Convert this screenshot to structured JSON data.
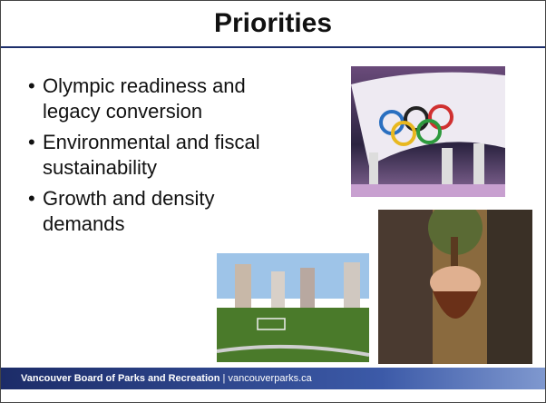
{
  "title": "Priorities",
  "bullets": [
    "Olympic readiness and legacy conversion",
    "Environmental and fiscal sustainability",
    "Growth and density demands"
  ],
  "footer": {
    "organization": "Vancouver Board of Parks and Recreation",
    "separator": "|",
    "website": "vancouverparks.ca"
  }
}
